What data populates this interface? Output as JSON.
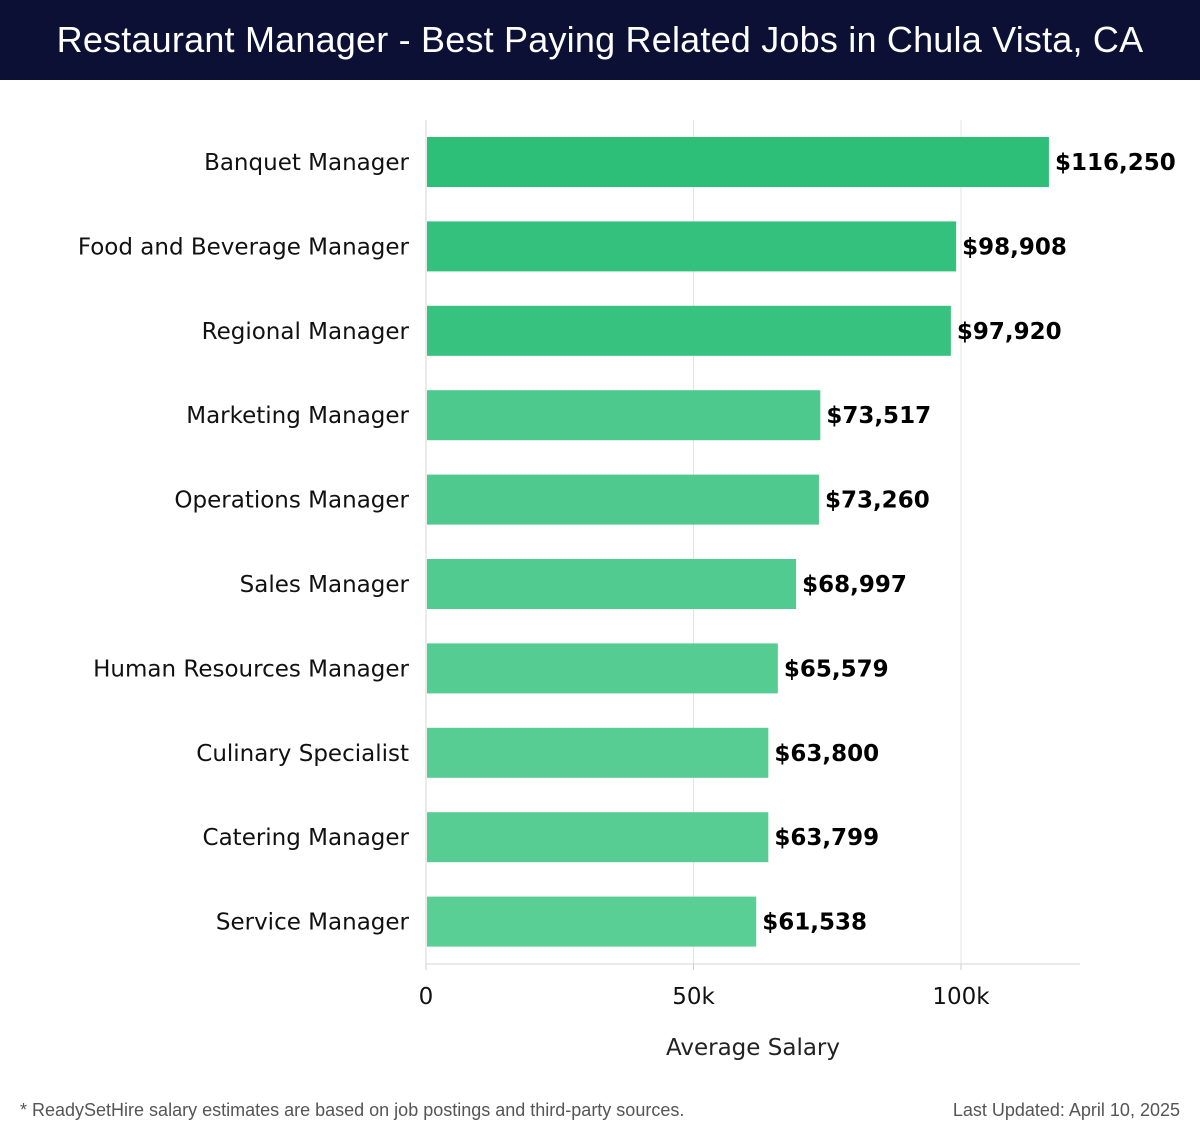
{
  "header": {
    "title": "Restaurant Manager - Best Paying Related Jobs in Chula Vista, CA"
  },
  "chart_data": {
    "type": "bar",
    "orientation": "horizontal",
    "title": "Restaurant Manager - Best Paying Related Jobs in Chula Vista, CA",
    "categories": [
      "Banquet Manager",
      "Food and Beverage Manager",
      "Regional Manager",
      "Marketing Manager",
      "Operations Manager",
      "Sales Manager",
      "Human Resources Manager",
      "Culinary Specialist",
      "Catering Manager",
      "Service Manager"
    ],
    "values": [
      116250,
      98908,
      97920,
      73517,
      73260,
      68997,
      65579,
      63800,
      63799,
      61538
    ],
    "value_labels": [
      "$116,250",
      "$98,908",
      "$97,920",
      "$73,517",
      "$73,260",
      "$68,997",
      "$65,579",
      "$63,800",
      "$63,799",
      "$61,538"
    ],
    "xlabel": "Average Salary",
    "ylabel": "",
    "xlim": [
      0,
      122000
    ],
    "xticks": [
      0,
      50000,
      100000
    ],
    "xtick_labels": [
      "0",
      "50k",
      "100k"
    ],
    "grid": true,
    "bar_colors": [
      "#2dbe78",
      "#33c17d",
      "#37c27f",
      "#4ec98d",
      "#4fc98e",
      "#52cb90",
      "#55cc92",
      "#57cd93",
      "#57cd93",
      "#59ce95"
    ]
  },
  "footer": {
    "note": "* ReadySetHire salary estimates are based on job postings and third-party sources.",
    "updated": "Last Updated: April 10, 2025"
  }
}
